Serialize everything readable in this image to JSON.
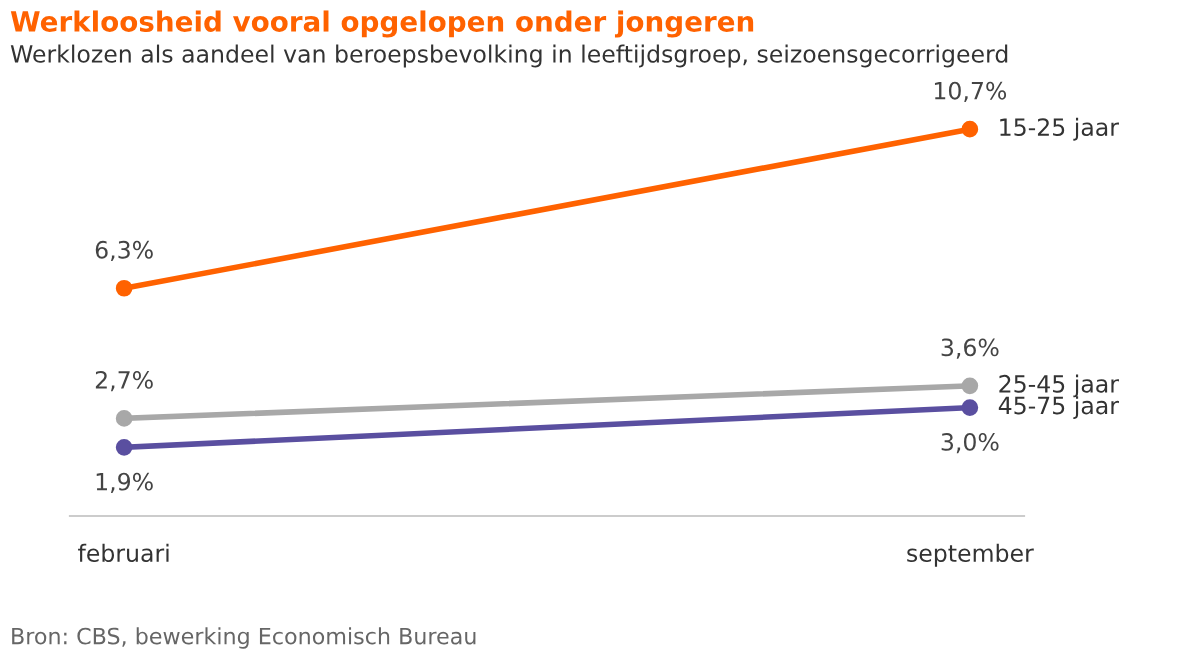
{
  "chart_data": {
    "type": "line",
    "title": "Werkloosheid vooral opgelopen onder jongeren",
    "subtitle": "Werklozen als aandeel van beroepsbevolking in leeftijdsgroep, seizoensgecorrigeerd",
    "categories": [
      "februari",
      "september"
    ],
    "series": [
      {
        "name": "15-25 jaar",
        "color": "#ff6200",
        "values": [
          6.3,
          10.7
        ],
        "value_labels": [
          "6,3%",
          "10,7%"
        ]
      },
      {
        "name": "25-45 jaar",
        "color": "#a8a8a8",
        "values": [
          2.7,
          3.6
        ],
        "value_labels": [
          "2,7%",
          "3,6%"
        ]
      },
      {
        "name": "45-75 jaar",
        "color": "#5a4fa0",
        "values": [
          1.9,
          3.0
        ],
        "value_labels": [
          "1,9%",
          "3,0%"
        ]
      }
    ],
    "marker": "circle",
    "line_style": "solid",
    "legend": false,
    "grid": false,
    "annotations": [
      "Bron: CBS, bewerking Economisch Bureau"
    ]
  }
}
